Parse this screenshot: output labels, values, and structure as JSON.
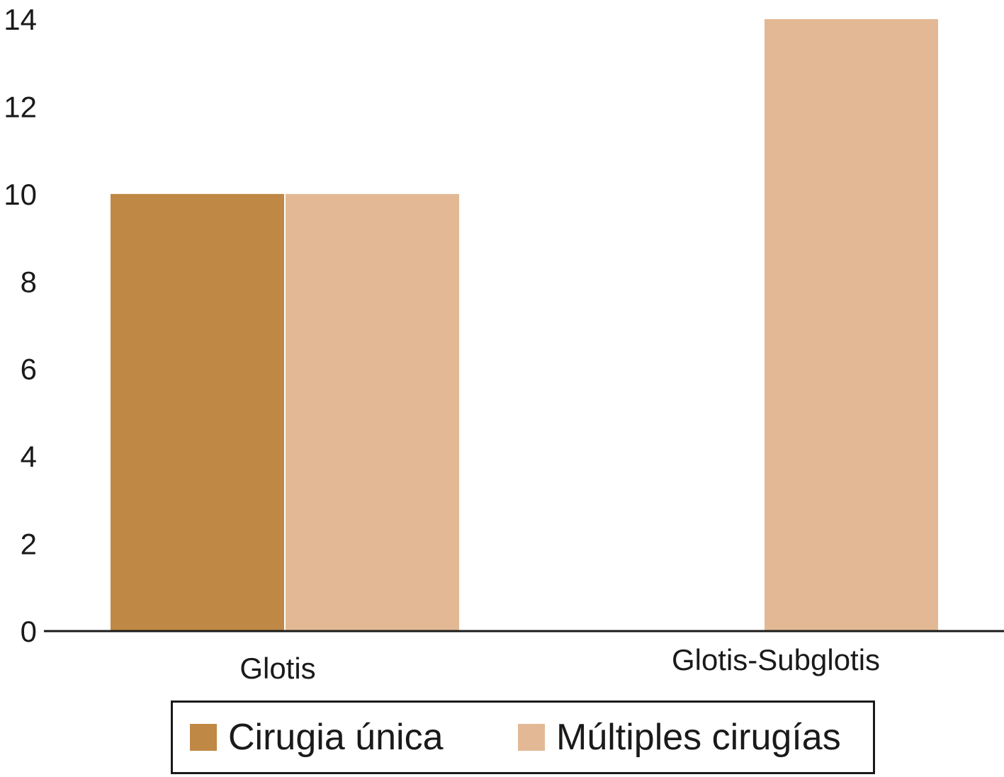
{
  "chart_data": {
    "type": "bar",
    "title": "",
    "xlabel": "",
    "ylabel": "",
    "categories": [
      "Glotis",
      "Glotis-Subglotis"
    ],
    "series": [
      {
        "name": "Cirugia única",
        "values": [
          10,
          0
        ],
        "color": "#c08845"
      },
      {
        "name": "Múltiples cirugías",
        "values": [
          10,
          14
        ],
        "color": "#e3b995"
      }
    ],
    "ylim": [
      0,
      14
    ],
    "yticks": [
      0,
      2,
      4,
      6,
      8,
      10,
      12,
      14
    ],
    "grid": false,
    "legend_position": "bottom"
  },
  "legend": {
    "items": [
      {
        "label": "Cirugia única",
        "color": "#c08845"
      },
      {
        "label": "Múltiples cirugías",
        "color": "#e3b995"
      }
    ]
  }
}
